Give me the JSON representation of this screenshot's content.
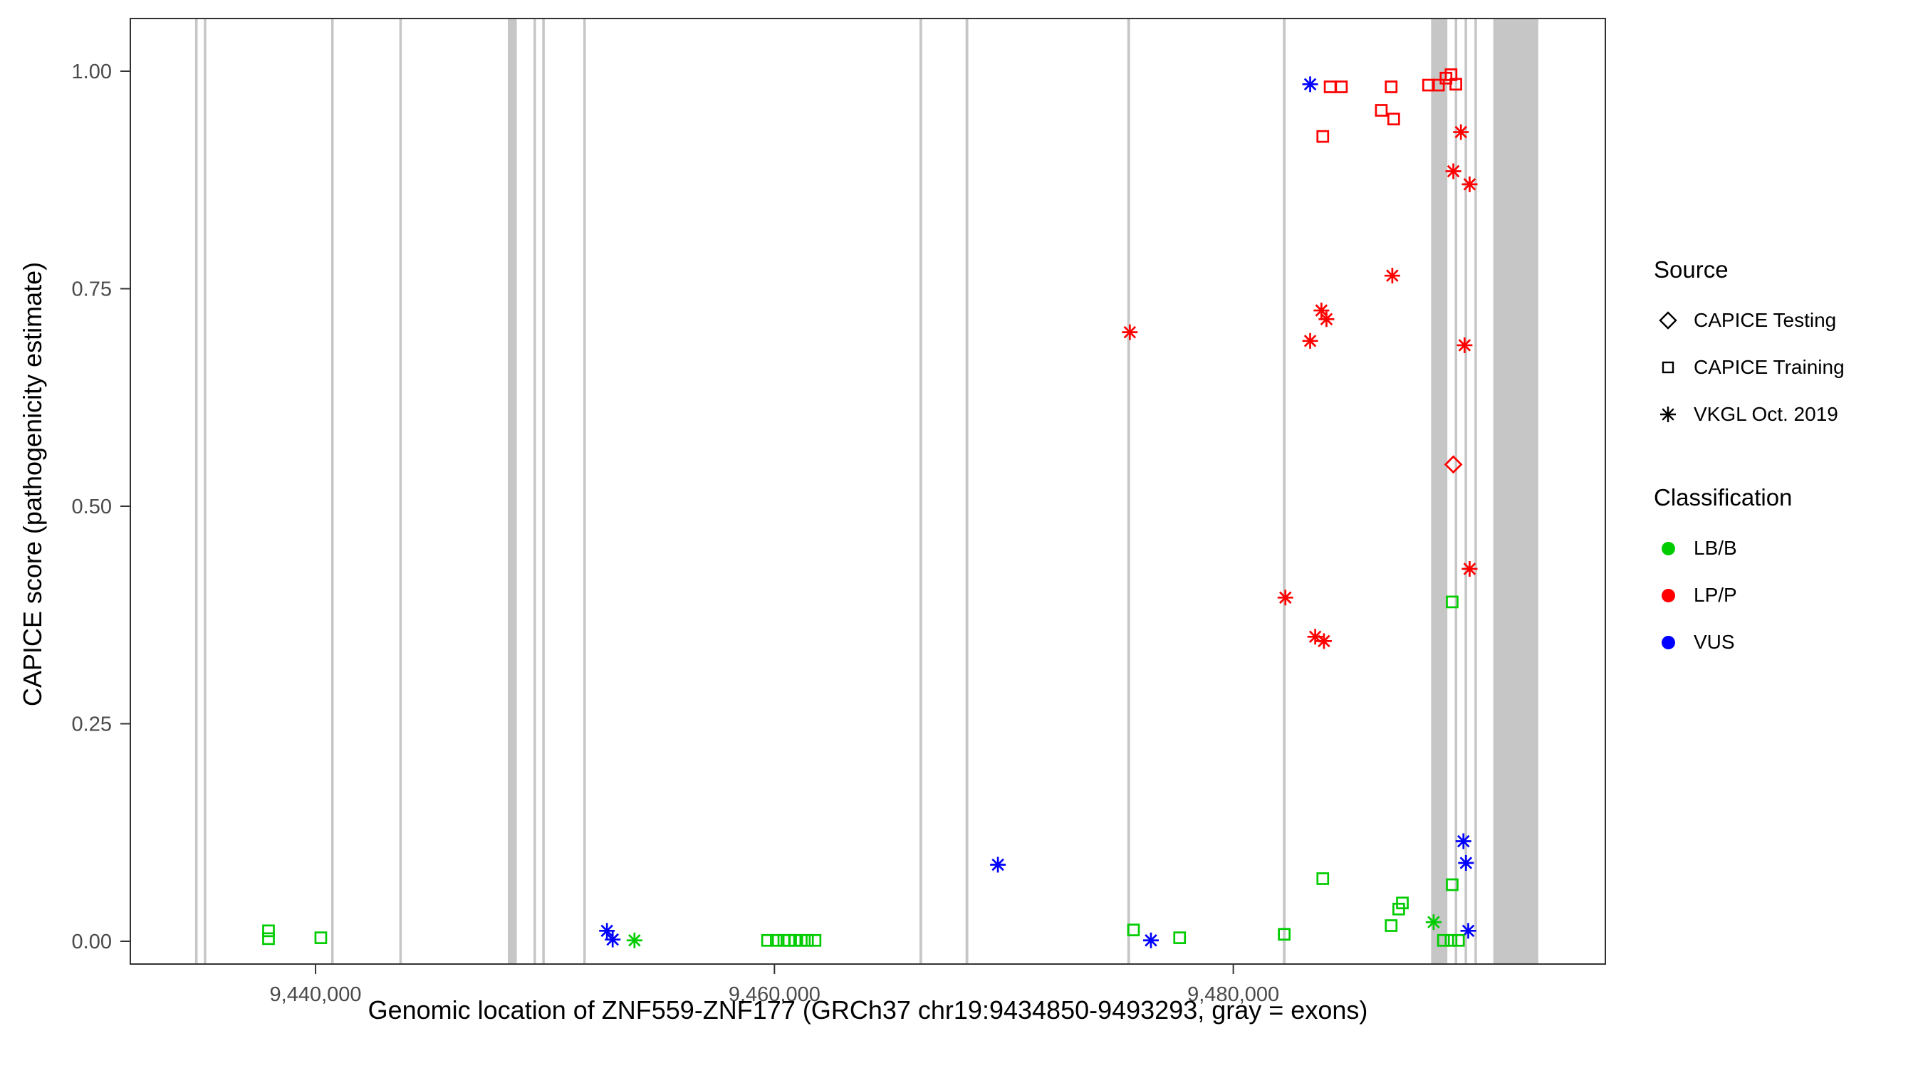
{
  "figure": {
    "background": "#ffffff"
  },
  "colors": {
    "exon": "#c6c6c6",
    "axis": "#333333",
    "tick_label": "#4a4a4a",
    "lbb": "#00cc00",
    "lpp": "#ff0000",
    "vus": "#0000ff"
  },
  "maps": {
    "shape": {
      "CAPICE Testing": "diamond",
      "CAPICE Training": "square",
      "VKGL Oct. 2019": "asterisk"
    },
    "color": {
      "LB/B": "#00cc00",
      "LP/P": "#ff0000",
      "VUS": "#0000ff"
    }
  },
  "legend": {
    "source": {
      "title": "Source",
      "items": [
        {
          "shape": "diamond",
          "label": "CAPICE Testing"
        },
        {
          "shape": "square",
          "label": "CAPICE Training"
        },
        {
          "shape": "asterisk",
          "label": "VKGL Oct. 2019"
        }
      ]
    },
    "classification": {
      "title": "Classification",
      "items": [
        {
          "label": "LB/B",
          "color": "#00cc00"
        },
        {
          "label": "LP/P",
          "color": "#ff0000"
        },
        {
          "label": "VUS",
          "color": "#0000ff"
        }
      ]
    }
  },
  "chart_data": {
    "type": "scatter",
    "title": "",
    "xlabel": "Genomic location of ZNF559-ZNF177 (GRCh37 chr19:9434850-9493293, gray = exons)",
    "ylabel": "CAPICE score (pathogenicity estimate)",
    "xlim": [
      9431928,
      9496215
    ],
    "ylim": [
      0,
      1
    ],
    "grid": false,
    "legend_position": "right",
    "x_ticks": [
      {
        "value": 9440000,
        "label": "9,440,000"
      },
      {
        "value": 9460000,
        "label": "9,460,000"
      },
      {
        "value": 9480000,
        "label": "9,480,000"
      }
    ],
    "y_ticks": [
      {
        "value": 0.0,
        "label": "0.00"
      },
      {
        "value": 0.25,
        "label": "0.25"
      },
      {
        "value": 0.5,
        "label": "0.50"
      },
      {
        "value": 0.75,
        "label": "0.75"
      },
      {
        "value": 1.0,
        "label": "1.00"
      }
    ],
    "exons": [
      [
        9434750,
        9434860
      ],
      [
        9435130,
        9435240
      ],
      [
        9440680,
        9440790
      ],
      [
        9443650,
        9443760
      ],
      [
        9448380,
        9448770
      ],
      [
        9449500,
        9449610
      ],
      [
        9449880,
        9449990
      ],
      [
        9451670,
        9451780
      ],
      [
        9466320,
        9466440
      ],
      [
        9468330,
        9468450
      ],
      [
        9475380,
        9475500
      ],
      [
        9482160,
        9482280
      ],
      [
        9488620,
        9489330
      ],
      [
        9489650,
        9489760
      ],
      [
        9490080,
        9490190
      ],
      [
        9490510,
        9490620
      ],
      [
        9491330,
        9493293
      ]
    ],
    "points": [
      {
        "x": 9437950,
        "y": 0.012,
        "source": "CAPICE Training",
        "classification": "LB/B"
      },
      {
        "x": 9437950,
        "y": 0.003,
        "source": "CAPICE Training",
        "classification": "LB/B"
      },
      {
        "x": 9440230,
        "y": 0.004,
        "source": "CAPICE Training",
        "classification": "LB/B"
      },
      {
        "x": 9452700,
        "y": 0.012,
        "source": "VKGL Oct. 2019",
        "classification": "VUS"
      },
      {
        "x": 9452950,
        "y": 0.002,
        "source": "VKGL Oct. 2019",
        "classification": "VUS"
      },
      {
        "x": 9453900,
        "y": 0.001,
        "source": "VKGL Oct. 2019",
        "classification": "LB/B"
      },
      {
        "x": 9459700,
        "y": 0.001,
        "source": "CAPICE Training",
        "classification": "LB/B"
      },
      {
        "x": 9460080,
        "y": 0.001,
        "source": "CAPICE Training",
        "classification": "LB/B"
      },
      {
        "x": 9460410,
        "y": 0.001,
        "source": "CAPICE Training",
        "classification": "LB/B"
      },
      {
        "x": 9460630,
        "y": 0.001,
        "source": "CAPICE Training",
        "classification": "LB/B"
      },
      {
        "x": 9460900,
        "y": 0.001,
        "source": "CAPICE Training",
        "classification": "LB/B"
      },
      {
        "x": 9461170,
        "y": 0.001,
        "source": "CAPICE Training",
        "classification": "LB/B"
      },
      {
        "x": 9461440,
        "y": 0.001,
        "source": "CAPICE Training",
        "classification": "LB/B"
      },
      {
        "x": 9461770,
        "y": 0.001,
        "source": "CAPICE Training",
        "classification": "LB/B"
      },
      {
        "x": 9469740,
        "y": 0.088,
        "source": "VKGL Oct. 2019",
        "classification": "VUS"
      },
      {
        "x": 9475490,
        "y": 0.7,
        "source": "VKGL Oct. 2019",
        "classification": "LP/P"
      },
      {
        "x": 9475650,
        "y": 0.013,
        "source": "CAPICE Training",
        "classification": "LB/B"
      },
      {
        "x": 9476410,
        "y": 0.001,
        "source": "VKGL Oct. 2019",
        "classification": "VUS"
      },
      {
        "x": 9477660,
        "y": 0.004,
        "source": "CAPICE Training",
        "classification": "LB/B"
      },
      {
        "x": 9482220,
        "y": 0.008,
        "source": "CAPICE Training",
        "classification": "LB/B"
      },
      {
        "x": 9482270,
        "y": 0.395,
        "source": "VKGL Oct. 2019",
        "classification": "LP/P"
      },
      {
        "x": 9483350,
        "y": 0.985,
        "source": "VKGL Oct. 2019",
        "classification": "VUS"
      },
      {
        "x": 9483900,
        "y": 0.925,
        "source": "CAPICE Training",
        "classification": "LP/P"
      },
      {
        "x": 9484220,
        "y": 0.982,
        "source": "CAPICE Training",
        "classification": "LP/P"
      },
      {
        "x": 9484710,
        "y": 0.982,
        "source": "CAPICE Training",
        "classification": "LP/P"
      },
      {
        "x": 9486450,
        "y": 0.955,
        "source": "CAPICE Training",
        "classification": "LP/P"
      },
      {
        "x": 9486990,
        "y": 0.945,
        "source": "CAPICE Training",
        "classification": "LP/P"
      },
      {
        "x": 9486880,
        "y": 0.982,
        "source": "CAPICE Training",
        "classification": "LP/P"
      },
      {
        "x": 9483840,
        "y": 0.725,
        "source": "VKGL Oct. 2019",
        "classification": "LP/P"
      },
      {
        "x": 9484060,
        "y": 0.715,
        "source": "VKGL Oct. 2019",
        "classification": "LP/P"
      },
      {
        "x": 9483350,
        "y": 0.69,
        "source": "VKGL Oct. 2019",
        "classification": "LP/P"
      },
      {
        "x": 9486930,
        "y": 0.765,
        "source": "VKGL Oct. 2019",
        "classification": "LP/P"
      },
      {
        "x": 9483570,
        "y": 0.35,
        "source": "VKGL Oct. 2019",
        "classification": "LP/P"
      },
      {
        "x": 9483950,
        "y": 0.345,
        "source": "VKGL Oct. 2019",
        "classification": "LP/P"
      },
      {
        "x": 9483900,
        "y": 0.072,
        "source": "CAPICE Training",
        "classification": "LB/B"
      },
      {
        "x": 9486880,
        "y": 0.018,
        "source": "CAPICE Training",
        "classification": "LB/B"
      },
      {
        "x": 9487210,
        "y": 0.037,
        "source": "CAPICE Training",
        "classification": "LB/B"
      },
      {
        "x": 9487370,
        "y": 0.044,
        "source": "CAPICE Training",
        "classification": "LB/B"
      },
      {
        "x": 9488510,
        "y": 0.984,
        "source": "CAPICE Training",
        "classification": "LP/P"
      },
      {
        "x": 9488940,
        "y": 0.984,
        "source": "CAPICE Training",
        "classification": "LP/P"
      },
      {
        "x": 9489270,
        "y": 0.992,
        "source": "CAPICE Training",
        "classification": "LP/P"
      },
      {
        "x": 9489490,
        "y": 0.996,
        "source": "CAPICE Training",
        "classification": "LP/P"
      },
      {
        "x": 9489700,
        "y": 0.985,
        "source": "CAPICE Training",
        "classification": "LP/P"
      },
      {
        "x": 9489920,
        "y": 0.93,
        "source": "VKGL Oct. 2019",
        "classification": "LP/P"
      },
      {
        "x": 9489590,
        "y": 0.885,
        "source": "VKGL Oct. 2019",
        "classification": "LP/P"
      },
      {
        "x": 9490300,
        "y": 0.87,
        "source": "VKGL Oct. 2019",
        "classification": "LP/P"
      },
      {
        "x": 9490080,
        "y": 0.685,
        "source": "VKGL Oct. 2019",
        "classification": "LP/P"
      },
      {
        "x": 9489590,
        "y": 0.548,
        "source": "CAPICE Testing",
        "classification": "LP/P"
      },
      {
        "x": 9490300,
        "y": 0.428,
        "source": "VKGL Oct. 2019",
        "classification": "LP/P"
      },
      {
        "x": 9489540,
        "y": 0.39,
        "source": "CAPICE Training",
        "classification": "LB/B"
      },
      {
        "x": 9490030,
        "y": 0.115,
        "source": "VKGL Oct. 2019",
        "classification": "VUS"
      },
      {
        "x": 9490140,
        "y": 0.09,
        "source": "VKGL Oct. 2019",
        "classification": "VUS"
      },
      {
        "x": 9490240,
        "y": 0.012,
        "source": "VKGL Oct. 2019",
        "classification": "VUS"
      },
      {
        "x": 9488730,
        "y": 0.022,
        "source": "VKGL Oct. 2019",
        "classification": "LB/B"
      },
      {
        "x": 9489160,
        "y": 0.001,
        "source": "CAPICE Training",
        "classification": "LB/B"
      },
      {
        "x": 9489490,
        "y": 0.001,
        "source": "CAPICE Training",
        "classification": "LB/B"
      },
      {
        "x": 9489810,
        "y": 0.001,
        "source": "CAPICE Training",
        "classification": "LB/B"
      },
      {
        "x": 9489540,
        "y": 0.065,
        "source": "CAPICE Training",
        "classification": "LB/B"
      }
    ]
  }
}
